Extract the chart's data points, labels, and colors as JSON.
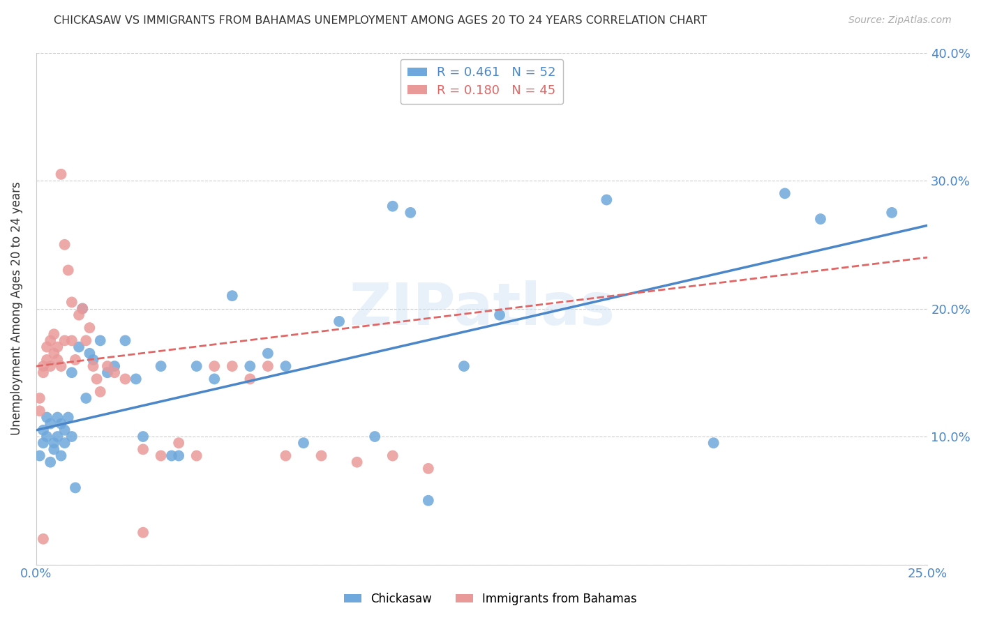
{
  "title": "CHICKASAW VS IMMIGRANTS FROM BAHAMAS UNEMPLOYMENT AMONG AGES 20 TO 24 YEARS CORRELATION CHART",
  "source": "Source: ZipAtlas.com",
  "ylabel_label": "Unemployment Among Ages 20 to 24 years",
  "xmin": 0.0,
  "xmax": 0.25,
  "ymin": 0.0,
  "ymax": 0.4,
  "x_ticks": [
    0.0,
    0.05,
    0.1,
    0.15,
    0.2,
    0.25
  ],
  "x_tick_labels": [
    "0.0%",
    "",
    "",
    "",
    "",
    "25.0%"
  ],
  "y_ticks": [
    0.0,
    0.1,
    0.2,
    0.3,
    0.4
  ],
  "y_tick_labels": [
    "",
    "10.0%",
    "20.0%",
    "30.0%",
    "40.0%"
  ],
  "chickasaw_R": 0.461,
  "chickasaw_N": 52,
  "bahamas_R": 0.18,
  "bahamas_N": 45,
  "chickasaw_color": "#6fa8dc",
  "bahamas_color": "#ea9999",
  "chickasaw_line_color": "#4a86c8",
  "bahamas_line_color": "#e06666",
  "legend_label_1": "Chickasaw",
  "legend_label_2": "Immigrants from Bahamas",
  "watermark": "ZIPatlas",
  "chickasaw_x": [
    0.001,
    0.002,
    0.002,
    0.003,
    0.003,
    0.004,
    0.004,
    0.005,
    0.005,
    0.006,
    0.006,
    0.007,
    0.007,
    0.008,
    0.008,
    0.009,
    0.01,
    0.01,
    0.011,
    0.012,
    0.013,
    0.014,
    0.015,
    0.016,
    0.018,
    0.02,
    0.022,
    0.025,
    0.028,
    0.03,
    0.035,
    0.038,
    0.04,
    0.045,
    0.05,
    0.055,
    0.06,
    0.065,
    0.07,
    0.075,
    0.085,
    0.095,
    0.1,
    0.105,
    0.11,
    0.12,
    0.13,
    0.16,
    0.19,
    0.21,
    0.22,
    0.24
  ],
  "chickasaw_y": [
    0.085,
    0.095,
    0.105,
    0.1,
    0.115,
    0.08,
    0.11,
    0.09,
    0.095,
    0.1,
    0.115,
    0.085,
    0.11,
    0.095,
    0.105,
    0.115,
    0.1,
    0.15,
    0.06,
    0.17,
    0.2,
    0.13,
    0.165,
    0.16,
    0.175,
    0.15,
    0.155,
    0.175,
    0.145,
    0.1,
    0.155,
    0.085,
    0.085,
    0.155,
    0.145,
    0.21,
    0.155,
    0.165,
    0.155,
    0.095,
    0.19,
    0.1,
    0.28,
    0.275,
    0.05,
    0.155,
    0.195,
    0.285,
    0.095,
    0.29,
    0.27,
    0.275
  ],
  "bahamas_x": [
    0.001,
    0.001,
    0.002,
    0.002,
    0.003,
    0.003,
    0.004,
    0.004,
    0.005,
    0.005,
    0.006,
    0.006,
    0.007,
    0.007,
    0.008,
    0.008,
    0.009,
    0.01,
    0.01,
    0.011,
    0.012,
    0.013,
    0.014,
    0.015,
    0.016,
    0.017,
    0.018,
    0.02,
    0.022,
    0.025,
    0.03,
    0.035,
    0.04,
    0.045,
    0.05,
    0.055,
    0.06,
    0.065,
    0.07,
    0.08,
    0.09,
    0.1,
    0.11,
    0.03,
    0.002
  ],
  "bahamas_y": [
    0.12,
    0.13,
    0.15,
    0.155,
    0.16,
    0.17,
    0.155,
    0.175,
    0.18,
    0.165,
    0.17,
    0.16,
    0.305,
    0.155,
    0.25,
    0.175,
    0.23,
    0.205,
    0.175,
    0.16,
    0.195,
    0.2,
    0.175,
    0.185,
    0.155,
    0.145,
    0.135,
    0.155,
    0.15,
    0.145,
    0.09,
    0.085,
    0.095,
    0.085,
    0.155,
    0.155,
    0.145,
    0.155,
    0.085,
    0.085,
    0.08,
    0.085,
    0.075,
    0.025,
    0.02
  ],
  "chickasaw_line_x": [
    0.0,
    0.25
  ],
  "chickasaw_line_y": [
    0.105,
    0.265
  ],
  "bahamas_line_x": [
    0.0,
    0.25
  ],
  "bahamas_line_y": [
    0.155,
    0.24
  ]
}
